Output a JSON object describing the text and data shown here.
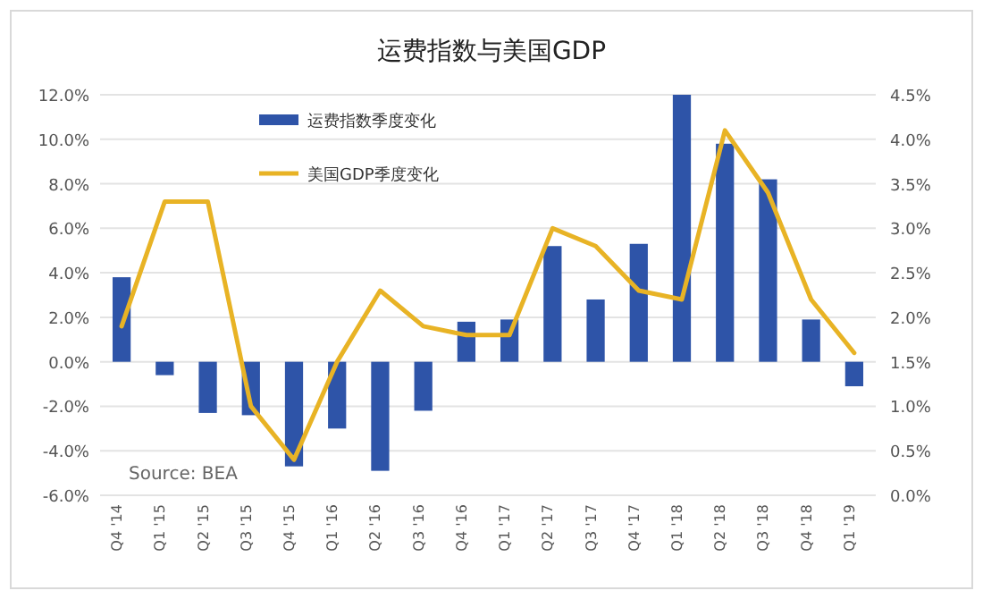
{
  "chart_data": {
    "type": "bar",
    "title": "运费指数与美国GDP",
    "categories": [
      "Q4 '14",
      "Q1 '15",
      "Q2 '15",
      "Q3 '15",
      "Q4 '15",
      "Q1 '16",
      "Q2 '16",
      "Q3 '16",
      "Q4 '16",
      "Q1 '17",
      "Q2 '17",
      "Q3 '17",
      "Q4 '17",
      "Q1 '18",
      "Q2 '18",
      "Q3 '18",
      "Q4 '18",
      "Q1 '19"
    ],
    "series": [
      {
        "name": "运费指数季度变化",
        "color": "#2e54a8",
        "values": [
          3.8,
          -0.6,
          -2.3,
          -2.4,
          -4.7,
          -3.0,
          -4.9,
          -2.2,
          1.8,
          1.9,
          5.2,
          2.8,
          5.3,
          12.0,
          9.8,
          8.2,
          1.9,
          -1.1
        ]
      },
      {
        "name": "美国GDP季度变化",
        "type": "line",
        "axis": "y2",
        "color": "#e8b325",
        "values": [
          1.9,
          3.3,
          3.3,
          1.0,
          0.4,
          1.5,
          2.3,
          1.9,
          1.8,
          1.8,
          3.0,
          2.8,
          2.3,
          2.2,
          4.1,
          3.4,
          2.2,
          1.6
        ]
      }
    ],
    "ylim": [
      -6,
      12
    ],
    "yticks": [
      {
        "value": -6,
        "label": "-6.0%"
      },
      {
        "value": -4,
        "label": "-4.0%"
      },
      {
        "value": -2,
        "label": "-2.0%"
      },
      {
        "value": 0,
        "label": "0.0%"
      },
      {
        "value": 2,
        "label": "2.0%"
      },
      {
        "value": 4,
        "label": "4.0%"
      },
      {
        "value": 6,
        "label": "6.0%"
      },
      {
        "value": 8,
        "label": "8.0%"
      },
      {
        "value": 10,
        "label": "10.0%"
      },
      {
        "value": 12,
        "label": "12.0%"
      }
    ],
    "y2lim": [
      0,
      4.5
    ],
    "y2ticks": [
      {
        "value": 0,
        "label": "0.0%"
      },
      {
        "value": 0.5,
        "label": "0.5%"
      },
      {
        "value": 1,
        "label": "1.0%"
      },
      {
        "value": 1.5,
        "label": "1.5%"
      },
      {
        "value": 2,
        "label": "2.0%"
      },
      {
        "value": 2.5,
        "label": "2.5%"
      },
      {
        "value": 3,
        "label": "3.0%"
      },
      {
        "value": 3.5,
        "label": "3.5%"
      },
      {
        "value": 4,
        "label": "4.0%"
      },
      {
        "value": 4.5,
        "label": "4.5%"
      }
    ],
    "grid": "y",
    "legend": "top left",
    "annotations": [
      "Source: BEA"
    ]
  }
}
